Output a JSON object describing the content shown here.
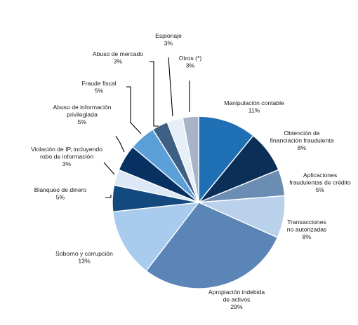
{
  "chart_data": {
    "type": "pie",
    "unit": "%",
    "start_angle_deg": 0,
    "direction": "clockwise",
    "slices": [
      {
        "lines": [
          "Manipulación contable"
        ],
        "value": 11,
        "value_label": "11%",
        "color": "#1f6fb5"
      },
      {
        "lines": [
          "Obtención de",
          "financiación fraudulenta"
        ],
        "value": 8,
        "value_label": "8%",
        "color": "#0b2f57"
      },
      {
        "lines": [
          "Aplicaciones",
          "fraudulentas de crédito"
        ],
        "value": 5,
        "value_label": "5%",
        "color": "#6b8db3"
      },
      {
        "lines": [
          "Transacciones",
          "no autorizadas"
        ],
        "value": 8,
        "value_label": "8%",
        "color": "#b9d1ea"
      },
      {
        "lines": [
          "Apropiación indebida",
          "de activos"
        ],
        "value": 29,
        "value_label": "29%",
        "color": "#5a85b6"
      },
      {
        "lines": [
          "Soborno y corrupción"
        ],
        "value": 13,
        "value_label": "13%",
        "color": "#a9cbee"
      },
      {
        "lines": [
          "Blanqueo de dinero"
        ],
        "value": 5,
        "value_label": "5%",
        "color": "#13497e"
      },
      {
        "lines": [
          "Violación de IP, incluyendo",
          "robo de información"
        ],
        "value": 3,
        "value_label": "3%",
        "color": "#dce8f5"
      },
      {
        "lines": [
          "Abuso de información",
          "privilegiada"
        ],
        "value": 5,
        "value_label": "5%",
        "color": "#063161"
      },
      {
        "lines": [
          "Fraude fiscal"
        ],
        "value": 5,
        "value_label": "5%",
        "color": "#5b9fd8"
      },
      {
        "lines": [
          "Abuso de mercado"
        ],
        "value": 3,
        "value_label": "3%",
        "color": "#3e5f84"
      },
      {
        "lines": [
          "Espionaje"
        ],
        "value": 3,
        "value_label": "3%",
        "color": "#e6eef8"
      },
      {
        "lines": [
          "Otros (*)"
        ],
        "value": 3,
        "value_label": "3%",
        "color": "#a7b3c6"
      }
    ]
  }
}
